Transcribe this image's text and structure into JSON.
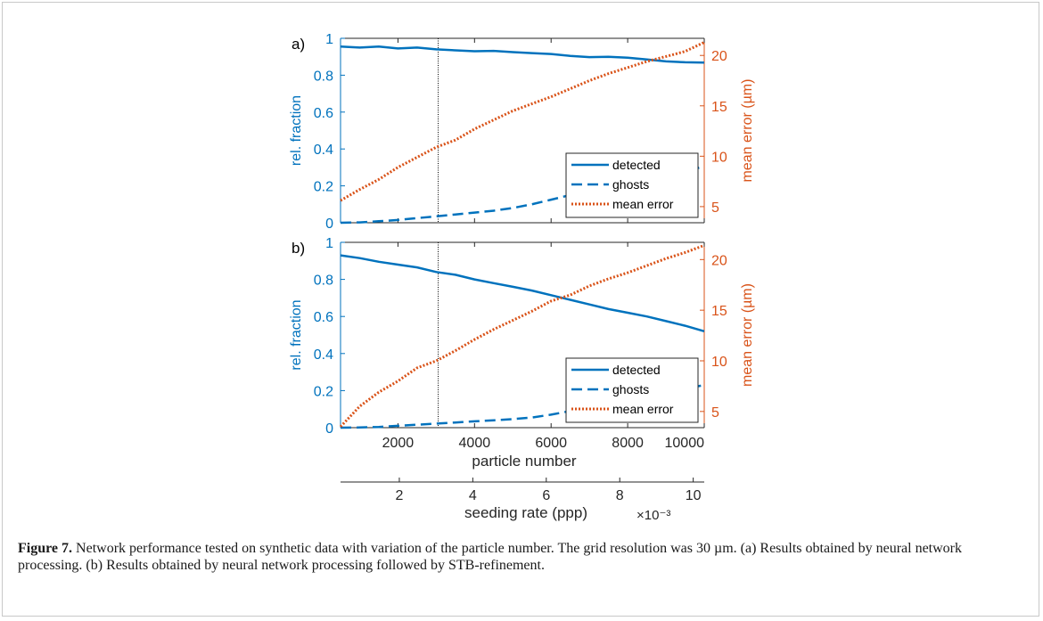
{
  "colors": {
    "blue": "#0072BD",
    "orange": "#D95319",
    "black": "#262626"
  },
  "caption": {
    "label": "Figure 7.",
    "text": "Network performance tested on synthetic data with variation of the particle number. The grid resolution was 30 µm. (a) Results obtained by neural network processing. (b) Results obtained by neural network processing followed by STB-refinement."
  },
  "chart_data": [
    {
      "type": "line",
      "panel_label": "a)",
      "xlim": [
        500,
        10000
      ],
      "ylim_left": [
        0,
        1
      ],
      "ylim_right": [
        3.4,
        21.7
      ],
      "ylabel_left": "rel. fraction",
      "ylabel_right": "mean error (µm)",
      "yticks_left": [
        "0",
        "0.2",
        "0.4",
        "0.6",
        "0.8",
        "1"
      ],
      "yticks_right": [
        "5",
        "10",
        "15",
        "20"
      ],
      "vline_x": 3050,
      "legend_position": "bottom-right",
      "x": [
        500,
        1000,
        1500,
        2000,
        2500,
        3000,
        3500,
        4000,
        4500,
        5000,
        5500,
        6000,
        6500,
        7000,
        7500,
        8000,
        8500,
        9000,
        9500,
        10000
      ],
      "series": [
        {
          "name": "detected",
          "axis": "left",
          "style": "solid",
          "values": [
            0.955,
            0.95,
            0.955,
            0.945,
            0.95,
            0.94,
            0.935,
            0.93,
            0.932,
            0.925,
            0.92,
            0.915,
            0.905,
            0.898,
            0.9,
            0.895,
            0.885,
            0.875,
            0.87,
            0.868
          ]
        },
        {
          "name": "ghosts",
          "axis": "left",
          "style": "dashed",
          "values": [
            0.0,
            0.002,
            0.008,
            0.015,
            0.025,
            0.035,
            0.045,
            0.055,
            0.065,
            0.08,
            0.1,
            0.125,
            0.15,
            0.17,
            0.19,
            0.21,
            0.23,
            0.255,
            0.28,
            0.305
          ]
        },
        {
          "name": "mean error",
          "axis": "right",
          "style": "dotted",
          "values": [
            5.6,
            6.7,
            7.7,
            8.9,
            9.9,
            10.9,
            11.6,
            12.7,
            13.6,
            14.5,
            15.2,
            15.9,
            16.7,
            17.5,
            18.2,
            18.8,
            19.4,
            19.9,
            20.4,
            21.3
          ]
        }
      ]
    },
    {
      "type": "line",
      "panel_label": "b)",
      "xlim": [
        500,
        10000
      ],
      "ylim_left": [
        0,
        1
      ],
      "ylim_right": [
        3.4,
        21.7
      ],
      "ylabel_left": "rel. fraction",
      "ylabel_right": "mean error (µm)",
      "yticks_left": [
        "0",
        "0.2",
        "0.4",
        "0.6",
        "0.8",
        "1"
      ],
      "yticks_right": [
        "5",
        "10",
        "15",
        "20"
      ],
      "vline_x": 3050,
      "legend_position": "bottom-right",
      "xlabel": "particle number",
      "xticks": [
        "2000",
        "4000",
        "6000",
        "8000",
        "10000"
      ],
      "x": [
        500,
        1000,
        1500,
        2000,
        2500,
        3000,
        3500,
        4000,
        4500,
        5000,
        5500,
        6000,
        6500,
        7000,
        7500,
        8000,
        8500,
        9000,
        9500,
        10000
      ],
      "series": [
        {
          "name": "detected",
          "axis": "left",
          "style": "solid",
          "values": [
            0.93,
            0.915,
            0.895,
            0.88,
            0.865,
            0.84,
            0.825,
            0.8,
            0.78,
            0.76,
            0.74,
            0.715,
            0.69,
            0.665,
            0.64,
            0.62,
            0.6,
            0.575,
            0.55,
            0.52
          ]
        },
        {
          "name": "ghosts",
          "axis": "left",
          "style": "dashed",
          "values": [
            0.0,
            0.001,
            0.004,
            0.01,
            0.016,
            0.022,
            0.028,
            0.034,
            0.04,
            0.046,
            0.055,
            0.07,
            0.09,
            0.11,
            0.13,
            0.15,
            0.17,
            0.19,
            0.21,
            0.23
          ]
        },
        {
          "name": "mean error",
          "axis": "right",
          "style": "dotted",
          "values": [
            3.5,
            5.5,
            6.9,
            8.0,
            9.3,
            10.0,
            11.0,
            12.1,
            13.1,
            14.0,
            14.9,
            15.9,
            16.5,
            17.4,
            18.1,
            18.7,
            19.4,
            20.1,
            20.7,
            21.4
          ]
        }
      ]
    },
    {
      "type": "axis",
      "xlabel": "seeding rate (ppp)",
      "xticks": [
        "2",
        "4",
        "6",
        "8",
        "10"
      ],
      "exponent_label": "×10⁻³"
    }
  ]
}
